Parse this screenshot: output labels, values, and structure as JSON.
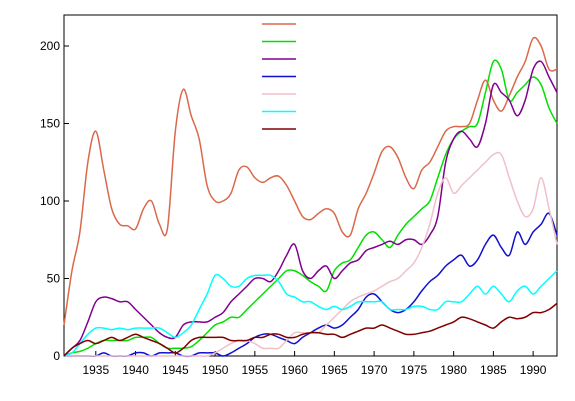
{
  "chart_data": {
    "type": "line",
    "title": "",
    "xlabel": "",
    "ylabel": "",
    "xlim": [
      1931,
      1993
    ],
    "ylim": [
      0,
      220
    ],
    "x_ticks": [
      1935,
      1940,
      1945,
      1950,
      1955,
      1960,
      1965,
      1970,
      1975,
      1980,
      1985,
      1990
    ],
    "y_ticks": [
      0,
      50,
      100,
      150,
      200
    ],
    "grid": false,
    "legend": {
      "position": "top-center",
      "show_names": false
    },
    "x": [
      1931,
      1932,
      1933,
      1934,
      1935,
      1936,
      1937,
      1938,
      1939,
      1940,
      1941,
      1942,
      1943,
      1944,
      1945,
      1946,
      1947,
      1948,
      1949,
      1950,
      1951,
      1952,
      1953,
      1954,
      1955,
      1956,
      1957,
      1958,
      1959,
      1960,
      1961,
      1962,
      1963,
      1964,
      1965,
      1966,
      1967,
      1968,
      1969,
      1970,
      1971,
      1972,
      1973,
      1974,
      1975,
      1976,
      1977,
      1978,
      1979,
      1980,
      1981,
      1982,
      1983,
      1984,
      1985,
      1986,
      1987,
      1988,
      1989,
      1990,
      1991,
      1992,
      1993
    ],
    "series": [
      {
        "color": "#d9694a",
        "values": [
          20,
          55,
          80,
          125,
          145,
          120,
          95,
          85,
          84,
          82,
          95,
          100,
          85,
          82,
          145,
          172,
          155,
          140,
          110,
          100,
          100,
          105,
          120,
          122,
          115,
          112,
          115,
          116,
          110,
          100,
          90,
          88,
          92,
          95,
          92,
          80,
          78,
          95,
          105,
          118,
          132,
          135,
          128,
          115,
          108,
          120,
          125,
          135,
          145,
          148,
          148,
          150,
          165,
          178,
          165,
          158,
          168,
          180,
          190,
          205,
          200,
          185,
          185
        ]
      },
      {
        "color": "#00e000",
        "values": [
          0,
          2,
          3,
          5,
          8,
          10,
          10,
          10,
          10,
          12,
          12,
          12,
          8,
          5,
          5,
          5,
          6,
          10,
          15,
          20,
          22,
          25,
          25,
          30,
          35,
          40,
          45,
          50,
          55,
          55,
          52,
          48,
          45,
          42,
          55,
          60,
          62,
          70,
          78,
          80,
          75,
          70,
          78,
          85,
          90,
          95,
          100,
          115,
          130,
          140,
          145,
          148,
          150,
          170,
          190,
          185,
          165,
          170,
          175,
          180,
          175,
          160,
          150
        ]
      },
      {
        "color": "#800090",
        "values": [
          0,
          5,
          10,
          22,
          35,
          38,
          37,
          35,
          35,
          30,
          25,
          20,
          15,
          12,
          12,
          20,
          22,
          22,
          22,
          25,
          28,
          35,
          40,
          45,
          50,
          50,
          48,
          55,
          65,
          72,
          55,
          50,
          55,
          58,
          50,
          55,
          60,
          62,
          68,
          70,
          72,
          74,
          72,
          75,
          75,
          72,
          78,
          90,
          125,
          140,
          145,
          140,
          135,
          150,
          175,
          170,
          165,
          155,
          165,
          185,
          190,
          180,
          170
        ]
      },
      {
        "color": "#1010d0",
        "values": [
          0,
          0,
          0,
          0,
          0,
          2,
          0,
          0,
          0,
          2,
          2,
          0,
          2,
          2,
          2,
          0,
          0,
          2,
          2,
          2,
          0,
          2,
          5,
          8,
          12,
          14,
          14,
          12,
          10,
          8,
          12,
          15,
          18,
          20,
          18,
          20,
          25,
          30,
          38,
          40,
          35,
          30,
          28,
          30,
          35,
          42,
          48,
          52,
          58,
          62,
          65,
          58,
          62,
          72,
          78,
          70,
          65,
          80,
          72,
          80,
          85,
          92,
          78
        ]
      },
      {
        "color": "#f0c0c8",
        "values": [
          0,
          0,
          0,
          0,
          0,
          0,
          0,
          0,
          0,
          0,
          0,
          0,
          0,
          0,
          0,
          0,
          0,
          0,
          0,
          2,
          5,
          8,
          10,
          10,
          8,
          5,
          5,
          5,
          10,
          15,
          15,
          15,
          15,
          20,
          25,
          30,
          35,
          38,
          40,
          42,
          45,
          48,
          50,
          55,
          60,
          70,
          85,
          105,
          115,
          105,
          110,
          115,
          120,
          125,
          130,
          130,
          115,
          100,
          90,
          95,
          115,
          95,
          72
        ]
      },
      {
        "color": "#00ffff",
        "values": [
          0,
          2,
          8,
          14,
          18,
          18,
          17,
          18,
          17,
          18,
          18,
          18,
          18,
          15,
          12,
          15,
          20,
          30,
          40,
          52,
          50,
          45,
          45,
          50,
          52,
          52,
          52,
          48,
          40,
          38,
          35,
          35,
          32,
          30,
          32,
          30,
          32,
          35,
          35,
          35,
          35,
          30,
          30,
          30,
          32,
          32,
          30,
          30,
          35,
          35,
          35,
          40,
          45,
          40,
          45,
          40,
          35,
          42,
          45,
          40,
          45,
          50,
          55
        ]
      },
      {
        "color": "#800000",
        "values": [
          0,
          5,
          8,
          10,
          8,
          10,
          12,
          10,
          12,
          14,
          12,
          10,
          8,
          5,
          2,
          5,
          10,
          12,
          12,
          12,
          12,
          10,
          10,
          10,
          12,
          12,
          14,
          14,
          12,
          12,
          14,
          15,
          15,
          14,
          14,
          12,
          14,
          16,
          18,
          18,
          20,
          18,
          16,
          14,
          14,
          15,
          16,
          18,
          20,
          22,
          25,
          24,
          22,
          20,
          18,
          22,
          25,
          24,
          25,
          28,
          28,
          30,
          34
        ]
      }
    ]
  }
}
